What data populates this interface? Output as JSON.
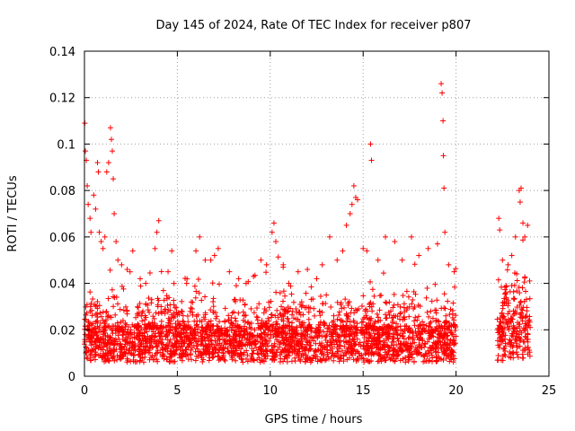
{
  "chart_data": {
    "type": "scatter",
    "title": "Day 145 of 2024, Rate Of TEC Index for receiver p807",
    "xlabel": "GPS time / hours",
    "ylabel": "ROTI / TECUs",
    "xlim": [
      0,
      25
    ],
    "ylim": [
      0,
      0.14
    ],
    "xticks": [
      0,
      5,
      10,
      15,
      20,
      25
    ],
    "xtick_labels": [
      "0",
      "5",
      "10",
      "15",
      "20",
      "25"
    ],
    "yticks": [
      0,
      0.02,
      0.04,
      0.06,
      0.08,
      0.1,
      0.12,
      0.14
    ],
    "ytick_labels": [
      "0",
      "0.02",
      "0.04",
      "0.06",
      "0.08",
      "0.1",
      "0.12",
      "0.14"
    ],
    "grid": true,
    "marker": "+",
    "color": "#ff0000",
    "data_gaps_hours": [
      [
        20.0,
        22.2
      ]
    ],
    "series": [
      {
        "name": "p807",
        "points": [
          [
            0.02,
            0.109
          ],
          [
            0.05,
            0.097
          ],
          [
            0.1,
            0.093
          ],
          [
            0.15,
            0.082
          ],
          [
            0.2,
            0.074
          ],
          [
            0.3,
            0.068
          ],
          [
            0.35,
            0.062
          ],
          [
            0.5,
            0.078
          ],
          [
            0.6,
            0.072
          ],
          [
            0.7,
            0.092
          ],
          [
            0.75,
            0.088
          ],
          [
            0.8,
            0.062
          ],
          [
            0.9,
            0.058
          ],
          [
            1.0,
            0.055
          ],
          [
            1.1,
            0.06
          ],
          [
            1.2,
            0.088
          ],
          [
            1.3,
            0.092
          ],
          [
            1.4,
            0.107
          ],
          [
            1.45,
            0.102
          ],
          [
            1.5,
            0.097
          ],
          [
            1.55,
            0.085
          ],
          [
            1.6,
            0.07
          ],
          [
            1.7,
            0.058
          ],
          [
            1.8,
            0.05
          ],
          [
            2.0,
            0.048
          ],
          [
            2.3,
            0.046
          ],
          [
            2.6,
            0.054
          ],
          [
            3.0,
            0.042
          ],
          [
            3.3,
            0.04
          ],
          [
            3.8,
            0.055
          ],
          [
            3.9,
            0.062
          ],
          [
            4.0,
            0.067
          ],
          [
            4.5,
            0.045
          ],
          [
            4.7,
            0.054
          ],
          [
            5.5,
            0.04
          ],
          [
            6.0,
            0.054
          ],
          [
            6.2,
            0.06
          ],
          [
            6.5,
            0.05
          ],
          [
            6.8,
            0.05
          ],
          [
            7.0,
            0.052
          ],
          [
            7.2,
            0.055
          ],
          [
            7.8,
            0.045
          ],
          [
            8.3,
            0.042
          ],
          [
            8.7,
            0.04
          ],
          [
            9.1,
            0.043
          ],
          [
            9.5,
            0.05
          ],
          [
            9.8,
            0.048
          ],
          [
            10.1,
            0.062
          ],
          [
            10.2,
            0.066
          ],
          [
            10.3,
            0.058
          ],
          [
            10.7,
            0.048
          ],
          [
            11.0,
            0.04
          ],
          [
            11.5,
            0.045
          ],
          [
            12.0,
            0.046
          ],
          [
            12.5,
            0.042
          ],
          [
            12.8,
            0.048
          ],
          [
            13.2,
            0.06
          ],
          [
            13.6,
            0.05
          ],
          [
            13.9,
            0.054
          ],
          [
            14.1,
            0.065
          ],
          [
            14.3,
            0.07
          ],
          [
            14.4,
            0.074
          ],
          [
            14.5,
            0.082
          ],
          [
            14.6,
            0.077
          ],
          [
            14.7,
            0.076
          ],
          [
            15.0,
            0.055
          ],
          [
            15.2,
            0.054
          ],
          [
            15.4,
            0.1
          ],
          [
            15.45,
            0.093
          ],
          [
            15.8,
            0.05
          ],
          [
            16.2,
            0.06
          ],
          [
            16.7,
            0.058
          ],
          [
            17.1,
            0.05
          ],
          [
            17.6,
            0.06
          ],
          [
            18.0,
            0.052
          ],
          [
            18.5,
            0.055
          ],
          [
            19.0,
            0.057
          ],
          [
            19.2,
            0.126
          ],
          [
            19.25,
            0.122
          ],
          [
            19.3,
            0.11
          ],
          [
            19.32,
            0.095
          ],
          [
            19.35,
            0.081
          ],
          [
            19.4,
            0.062
          ],
          [
            19.6,
            0.048
          ],
          [
            19.9,
            0.045
          ],
          [
            22.3,
            0.068
          ],
          [
            22.35,
            0.063
          ],
          [
            22.5,
            0.05
          ],
          [
            22.8,
            0.048
          ],
          [
            23.0,
            0.052
          ],
          [
            23.2,
            0.06
          ],
          [
            23.4,
            0.08
          ],
          [
            23.45,
            0.075
          ],
          [
            23.5,
            0.081
          ],
          [
            23.6,
            0.066
          ],
          [
            23.7,
            0.06
          ],
          [
            23.85,
            0.065
          ]
        ]
      }
    ]
  }
}
